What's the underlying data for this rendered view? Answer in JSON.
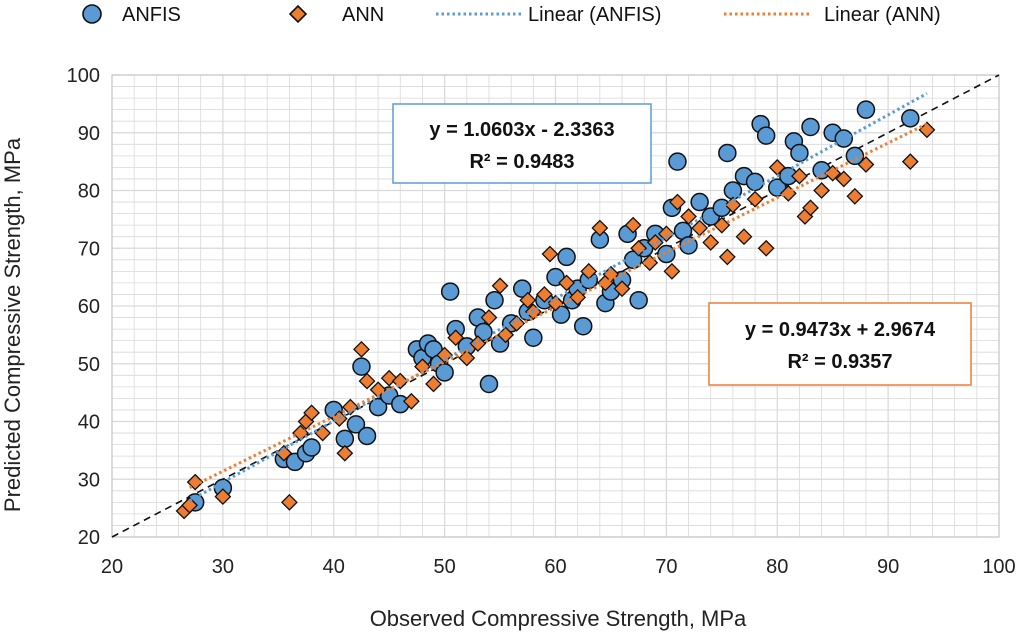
{
  "chart_data": {
    "type": "scatter",
    "xlabel": "Observed Compressive Strength, MPa",
    "ylabel": "Predicted Compressive Strength, MPa",
    "xlim": [
      20,
      100
    ],
    "ylim": [
      20,
      100
    ],
    "x_ticks": [
      "20",
      "30",
      "40",
      "50",
      "60",
      "70",
      "80",
      "90",
      "100"
    ],
    "y_ticks": [
      "20",
      "30",
      "40",
      "50",
      "60",
      "70",
      "80",
      "90",
      "100"
    ],
    "grid": true,
    "legend_position": "top",
    "legend": [
      "ANFIS",
      "ANN",
      "Linear (ANFIS)",
      "Linear (ANN)"
    ],
    "colors": {
      "anfis": "#5B9BD5",
      "ann": "#ED7D31",
      "marker_edge": "#111111",
      "identity_line": "#111111",
      "grid": "#d9d9d9"
    },
    "annotations": {
      "anfis_equation": "y = 1.0603x - 2.3363",
      "anfis_r2": "R² = 0.9483",
      "ann_equation": "y = 0.9473x + 2.9674",
      "ann_r2": "R² = 0.9357"
    },
    "series": [
      {
        "name": "ANFIS",
        "marker": "circle",
        "trendline": {
          "slope": 1.0603,
          "intercept": -2.3363,
          "x_range": [
            27,
            93.5
          ]
        },
        "points": [
          [
            27.5,
            26.0
          ],
          [
            30.0,
            28.5
          ],
          [
            35.5,
            33.5
          ],
          [
            36.5,
            33.0
          ],
          [
            37.5,
            34.5
          ],
          [
            38.0,
            35.5
          ],
          [
            40.0,
            42.0
          ],
          [
            41.0,
            37.0
          ],
          [
            42.0,
            39.5
          ],
          [
            42.5,
            49.5
          ],
          [
            43.0,
            37.5
          ],
          [
            44.0,
            42.5
          ],
          [
            45.0,
            44.5
          ],
          [
            46.0,
            43.0
          ],
          [
            47.5,
            52.5
          ],
          [
            48.0,
            51.0
          ],
          [
            48.5,
            53.5
          ],
          [
            49.0,
            52.5
          ],
          [
            49.5,
            50.0
          ],
          [
            50.0,
            48.5
          ],
          [
            50.5,
            62.5
          ],
          [
            51.0,
            56.0
          ],
          [
            52.0,
            53.0
          ],
          [
            53.0,
            58.0
          ],
          [
            53.5,
            55.5
          ],
          [
            54.0,
            46.5
          ],
          [
            54.5,
            61.0
          ],
          [
            55.0,
            53.5
          ],
          [
            56.0,
            57.0
          ],
          [
            57.0,
            63.0
          ],
          [
            57.5,
            59.0
          ],
          [
            58.0,
            54.5
          ],
          [
            59.0,
            61.0
          ],
          [
            60.0,
            65.0
          ],
          [
            60.5,
            58.5
          ],
          [
            61.0,
            68.5
          ],
          [
            61.5,
            61.0
          ],
          [
            62.0,
            63.0
          ],
          [
            62.5,
            56.5
          ],
          [
            63.0,
            64.5
          ],
          [
            64.0,
            71.5
          ],
          [
            64.5,
            60.5
          ],
          [
            65.0,
            62.5
          ],
          [
            66.0,
            64.5
          ],
          [
            66.5,
            72.5
          ],
          [
            67.0,
            68.0
          ],
          [
            67.5,
            61.0
          ],
          [
            68.0,
            70.0
          ],
          [
            69.0,
            72.5
          ],
          [
            70.0,
            69.0
          ],
          [
            70.5,
            77.0
          ],
          [
            71.0,
            85.0
          ],
          [
            71.5,
            73.0
          ],
          [
            72.0,
            70.5
          ],
          [
            73.0,
            78.0
          ],
          [
            74.0,
            75.5
          ],
          [
            75.0,
            77.0
          ],
          [
            75.5,
            86.5
          ],
          [
            76.0,
            80.0
          ],
          [
            77.0,
            82.5
          ],
          [
            78.0,
            81.5
          ],
          [
            78.5,
            91.5
          ],
          [
            79.0,
            89.5
          ],
          [
            80.0,
            80.5
          ],
          [
            81.0,
            82.5
          ],
          [
            81.5,
            88.5
          ],
          [
            82.0,
            86.5
          ],
          [
            83.0,
            91.0
          ],
          [
            84.0,
            83.5
          ],
          [
            85.0,
            90.0
          ],
          [
            86.0,
            89.0
          ],
          [
            87.0,
            86.0
          ],
          [
            88.0,
            94.0
          ],
          [
            92.0,
            92.5
          ]
        ]
      },
      {
        "name": "ANN",
        "marker": "diamond",
        "trendline": {
          "slope": 0.9473,
          "intercept": 2.9674,
          "x_range": [
            27,
            93.5
          ]
        },
        "points": [
          [
            26.5,
            24.5
          ],
          [
            27.0,
            25.5
          ],
          [
            27.5,
            29.5
          ],
          [
            30.0,
            27.0
          ],
          [
            35.5,
            34.5
          ],
          [
            36.0,
            26.0
          ],
          [
            37.0,
            38.0
          ],
          [
            37.5,
            40.0
          ],
          [
            38.0,
            41.5
          ],
          [
            39.0,
            38.0
          ],
          [
            40.5,
            40.5
          ],
          [
            41.0,
            34.5
          ],
          [
            41.5,
            42.5
          ],
          [
            42.5,
            52.5
          ],
          [
            43.0,
            47.0
          ],
          [
            44.0,
            45.5
          ],
          [
            45.0,
            47.5
          ],
          [
            46.0,
            47.0
          ],
          [
            47.0,
            43.5
          ],
          [
            48.0,
            49.5
          ],
          [
            49.0,
            46.5
          ],
          [
            50.0,
            51.5
          ],
          [
            51.0,
            54.5
          ],
          [
            52.0,
            51.0
          ],
          [
            53.0,
            53.5
          ],
          [
            54.0,
            58.0
          ],
          [
            55.0,
            63.5
          ],
          [
            55.5,
            55.0
          ],
          [
            56.5,
            57.0
          ],
          [
            57.5,
            61.0
          ],
          [
            58.0,
            59.0
          ],
          [
            59.0,
            62.0
          ],
          [
            59.5,
            69.0
          ],
          [
            60.0,
            60.5
          ],
          [
            61.0,
            64.0
          ],
          [
            62.0,
            61.5
          ],
          [
            63.0,
            66.0
          ],
          [
            64.0,
            73.5
          ],
          [
            64.5,
            64.0
          ],
          [
            65.0,
            65.5
          ],
          [
            66.0,
            63.0
          ],
          [
            67.0,
            74.0
          ],
          [
            67.5,
            70.0
          ],
          [
            68.5,
            67.5
          ],
          [
            69.0,
            71.0
          ],
          [
            70.0,
            72.5
          ],
          [
            70.5,
            66.0
          ],
          [
            71.0,
            78.0
          ],
          [
            72.0,
            75.5
          ],
          [
            73.0,
            73.5
          ],
          [
            74.0,
            71.0
          ],
          [
            75.0,
            74.0
          ],
          [
            75.5,
            68.5
          ],
          [
            76.0,
            77.5
          ],
          [
            77.0,
            72.0
          ],
          [
            78.0,
            78.5
          ],
          [
            79.0,
            70.0
          ],
          [
            80.0,
            84.0
          ],
          [
            81.0,
            79.5
          ],
          [
            82.0,
            82.5
          ],
          [
            82.5,
            75.5
          ],
          [
            83.0,
            77.0
          ],
          [
            84.0,
            80.0
          ],
          [
            85.0,
            83.0
          ],
          [
            86.0,
            82.0
          ],
          [
            87.0,
            79.0
          ],
          [
            88.0,
            84.5
          ],
          [
            92.0,
            85.0
          ],
          [
            93.5,
            90.5
          ]
        ]
      }
    ]
  }
}
